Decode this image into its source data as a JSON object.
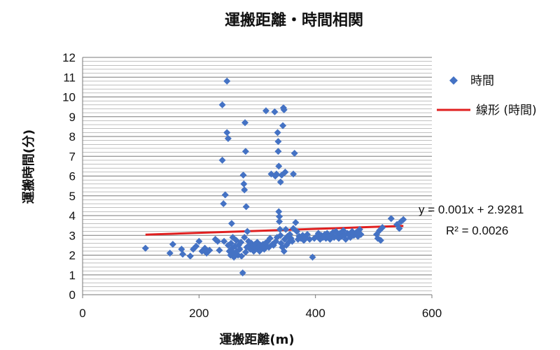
{
  "chart_data": {
    "type": "scatter",
    "title": "運搬距離・時間相関",
    "xlabel": "運搬距離(m)",
    "ylabel": "運搬時間(分)",
    "xlim": [
      0,
      600
    ],
    "ylim": [
      0,
      12
    ],
    "xticks": [
      0,
      200,
      400,
      600
    ],
    "yticks": [
      0,
      1,
      2,
      3,
      4,
      5,
      6,
      7,
      8,
      9,
      10,
      11,
      12
    ],
    "grid": "horizontal",
    "legend_position": "right",
    "series": [
      {
        "name": "時間",
        "color": "#4472C4",
        "marker": "diamond",
        "points": [
          [
            108,
            2.35
          ],
          [
            150,
            2.1
          ],
          [
            155,
            2.55
          ],
          [
            170,
            2.3
          ],
          [
            172,
            2.05
          ],
          [
            185,
            1.95
          ],
          [
            190,
            2.3
          ],
          [
            195,
            2.45
          ],
          [
            200,
            2.7
          ],
          [
            205,
            2.2
          ],
          [
            210,
            2.35
          ],
          [
            213,
            2.1
          ],
          [
            218,
            2.25
          ],
          [
            228,
            2.8
          ],
          [
            232,
            2.7
          ],
          [
            235,
            2.25
          ],
          [
            240,
            6.8
          ],
          [
            240,
            9.6
          ],
          [
            242,
            4.6
          ],
          [
            243,
            2.7
          ],
          [
            245,
            5.05
          ],
          [
            248,
            10.8
          ],
          [
            248,
            8.2
          ],
          [
            250,
            7.9
          ],
          [
            250,
            2.5
          ],
          [
            252,
            2.2
          ],
          [
            254,
            2.0
          ],
          [
            255,
            2.6
          ],
          [
            256,
            3.6
          ],
          [
            257,
            2.35
          ],
          [
            258,
            2.9
          ],
          [
            260,
            1.9
          ],
          [
            260,
            2.1
          ],
          [
            262,
            2.45
          ],
          [
            264,
            2.75
          ],
          [
            265,
            2.2
          ],
          [
            267,
            2.0
          ],
          [
            268,
            2.5
          ],
          [
            270,
            2.3
          ],
          [
            272,
            2.65
          ],
          [
            273,
            1.95
          ],
          [
            275,
            1.1
          ],
          [
            276,
            6.05
          ],
          [
            277,
            5.6
          ],
          [
            278,
            5.3
          ],
          [
            278,
            2.9
          ],
          [
            279,
            8.7
          ],
          [
            280,
            7.25
          ],
          [
            280,
            2.15
          ],
          [
            281,
            4.45
          ],
          [
            282,
            2.4
          ],
          [
            283,
            3.2
          ],
          [
            285,
            2.7
          ],
          [
            286,
            2.5
          ],
          [
            288,
            2.3
          ],
          [
            290,
            2.6
          ],
          [
            292,
            2.45
          ],
          [
            294,
            2.2
          ],
          [
            296,
            2.55
          ],
          [
            298,
            2.35
          ],
          [
            300,
            2.65
          ],
          [
            302,
            2.4
          ],
          [
            304,
            2.2
          ],
          [
            306,
            2.5
          ],
          [
            308,
            2.35
          ],
          [
            310,
            2.55
          ],
          [
            312,
            2.3
          ],
          [
            314,
            2.6
          ],
          [
            315,
            9.3
          ],
          [
            316,
            2.45
          ],
          [
            318,
            2.7
          ],
          [
            320,
            2.4
          ],
          [
            322,
            2.85
          ],
          [
            324,
            6.1
          ],
          [
            326,
            2.55
          ],
          [
            328,
            2.5
          ],
          [
            330,
            9.25
          ],
          [
            331,
            6.0
          ],
          [
            332,
            2.7
          ],
          [
            333,
            6.1
          ],
          [
            334,
            2.9
          ],
          [
            335,
            8.2
          ],
          [
            336,
            7.25
          ],
          [
            336,
            7.75
          ],
          [
            337,
            6.5
          ],
          [
            337,
            4.2
          ],
          [
            338,
            3.95
          ],
          [
            338,
            3.7
          ],
          [
            339,
            3.3
          ],
          [
            340,
            5.7
          ],
          [
            340,
            3.0
          ],
          [
            341,
            2.6
          ],
          [
            342,
            6.05
          ],
          [
            343,
            2.4
          ],
          [
            344,
            8.55
          ],
          [
            345,
            9.45
          ],
          [
            346,
            9.35
          ],
          [
            346,
            2.2
          ],
          [
            347,
            2.8
          ],
          [
            348,
            6.2
          ],
          [
            349,
            3.3
          ],
          [
            350,
            2.5
          ],
          [
            352,
            2.95
          ],
          [
            354,
            2.65
          ],
          [
            356,
            3.05
          ],
          [
            358,
            2.85
          ],
          [
            360,
            2.7
          ],
          [
            362,
            6.1
          ],
          [
            362,
            3.35
          ],
          [
            364,
            7.15
          ],
          [
            366,
            3.65
          ],
          [
            368,
            3.2
          ],
          [
            370,
            2.8
          ],
          [
            372,
            2.95
          ],
          [
            375,
            2.85
          ],
          [
            378,
            3.0
          ],
          [
            380,
            2.75
          ],
          [
            383,
            2.9
          ],
          [
            386,
            3.05
          ],
          [
            390,
            2.8
          ],
          [
            395,
            1.9
          ],
          [
            398,
            2.85
          ],
          [
            402,
            2.95
          ],
          [
            405,
            3.1
          ],
          [
            408,
            2.8
          ],
          [
            410,
            3.0
          ],
          [
            413,
            2.9
          ],
          [
            416,
            3.05
          ],
          [
            418,
            2.85
          ],
          [
            420,
            3.1
          ],
          [
            422,
            2.95
          ],
          [
            425,
            2.8
          ],
          [
            428,
            3.05
          ],
          [
            430,
            3.15
          ],
          [
            432,
            2.9
          ],
          [
            435,
            3.2
          ],
          [
            438,
            3.0
          ],
          [
            440,
            2.85
          ],
          [
            442,
            3.1
          ],
          [
            445,
            2.95
          ],
          [
            448,
            3.25
          ],
          [
            450,
            3.0
          ],
          [
            452,
            2.8
          ],
          [
            455,
            3.1
          ],
          [
            458,
            3.05
          ],
          [
            460,
            2.9
          ],
          [
            463,
            3.2
          ],
          [
            466,
            3.0
          ],
          [
            470,
            3.15
          ],
          [
            473,
            2.95
          ],
          [
            476,
            3.3
          ],
          [
            478,
            3.05
          ],
          [
            505,
            3.05
          ],
          [
            507,
            2.85
          ],
          [
            510,
            3.25
          ],
          [
            512,
            2.75
          ],
          [
            515,
            3.4
          ],
          [
            530,
            3.85
          ],
          [
            540,
            3.55
          ],
          [
            544,
            3.35
          ],
          [
            547,
            3.7
          ],
          [
            551,
            3.8
          ]
        ]
      }
    ],
    "trendline": {
      "name": "線形 (時間)",
      "color": "#E02020",
      "slope": 0.001,
      "intercept": 2.9281,
      "x_range": [
        108,
        551
      ],
      "equation": "y = 0.001x + 2.9281",
      "r_squared": "R² = 0.0026"
    }
  }
}
